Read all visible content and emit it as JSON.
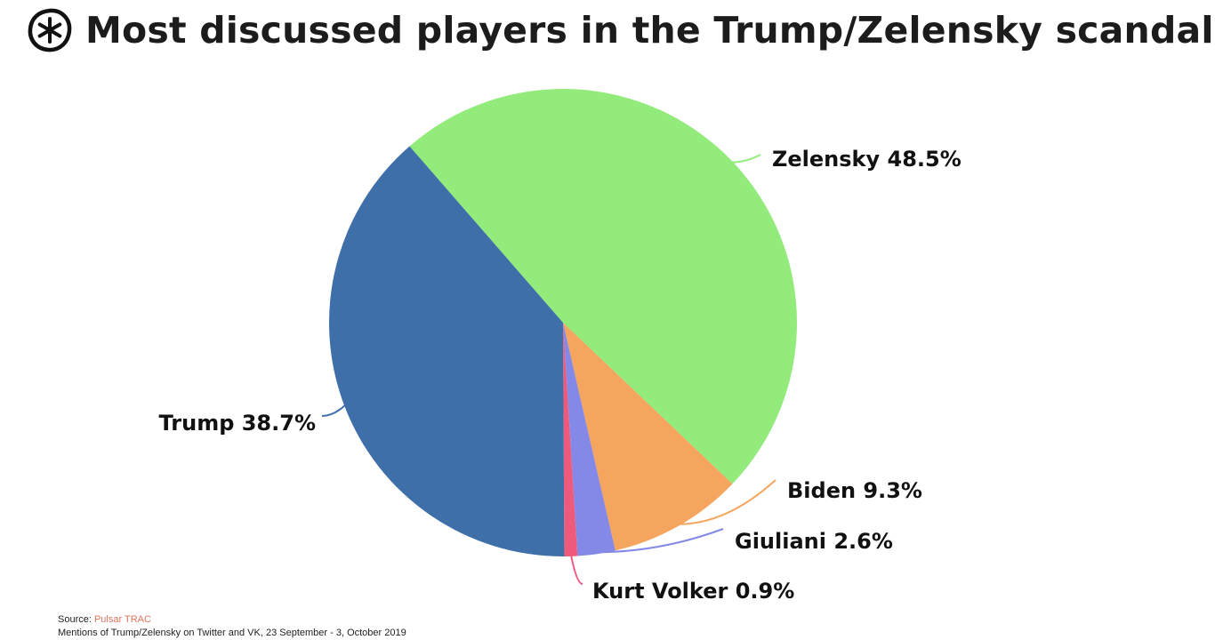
{
  "title": "Most discussed players in the Trump/Zelensky scandal",
  "logo_icon": "pulsar-asterisk-icon",
  "chart_data": {
    "type": "pie",
    "title": "Most discussed players in the Trump/Zelensky scandal",
    "legend": "none",
    "slices": [
      {
        "name": "Zelensky",
        "value": 48.5,
        "label": "Zelensky 48.5%",
        "color": "#93eb7c"
      },
      {
        "name": "Biden",
        "value": 9.3,
        "label": "Biden 9.3%",
        "color": "#f5a55e"
      },
      {
        "name": "Giuliani",
        "value": 2.6,
        "label": "Giuliani 2.6%",
        "color": "#8489e8"
      },
      {
        "name": "Kurt Volker",
        "value": 0.9,
        "label": "Kurt Volker 0.9%",
        "color": "#ee5a7c"
      },
      {
        "name": "Trump",
        "value": 38.7,
        "label": "Trump 38.7%",
        "color": "#3e6fa9"
      }
    ]
  },
  "footer": {
    "source_prefix": "Source: ",
    "source_name": "Pulsar TRAC",
    "note": "Mentions of Trump/Zelensky on Twitter and VK, 23 September - 3, October 2019"
  }
}
